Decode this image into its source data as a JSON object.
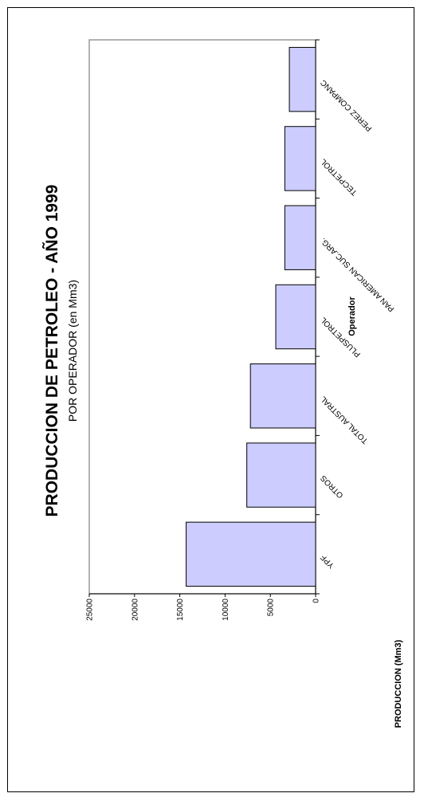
{
  "chart_data": {
    "type": "bar",
    "orientation": "rotated-90",
    "title": "PRODUCCION DE PETROLEO - AÑO 1999",
    "subtitle": "POR OPERADOR (en Mm3)",
    "xlabel": "Operador",
    "ylabel": "PRODUCCION (Mm3)",
    "categories": [
      "YPF",
      "OTROS",
      "TOTAL AUSTRAL",
      "PLUSPETROL",
      "PAN AMERICAN SUC.ARG.",
      "TECPETROL",
      "PEREZ COMPANC"
    ],
    "values": [
      14300,
      7600,
      7200,
      4400,
      3400,
      3400,
      2900
    ],
    "ylim": [
      0,
      25000
    ],
    "yticks": [
      "0",
      "5000",
      "10000",
      "15000",
      "20000",
      "25000"
    ],
    "bar_color": "#ccccff",
    "bar_stroke": "#000000",
    "plot_border_color": "#999999"
  }
}
